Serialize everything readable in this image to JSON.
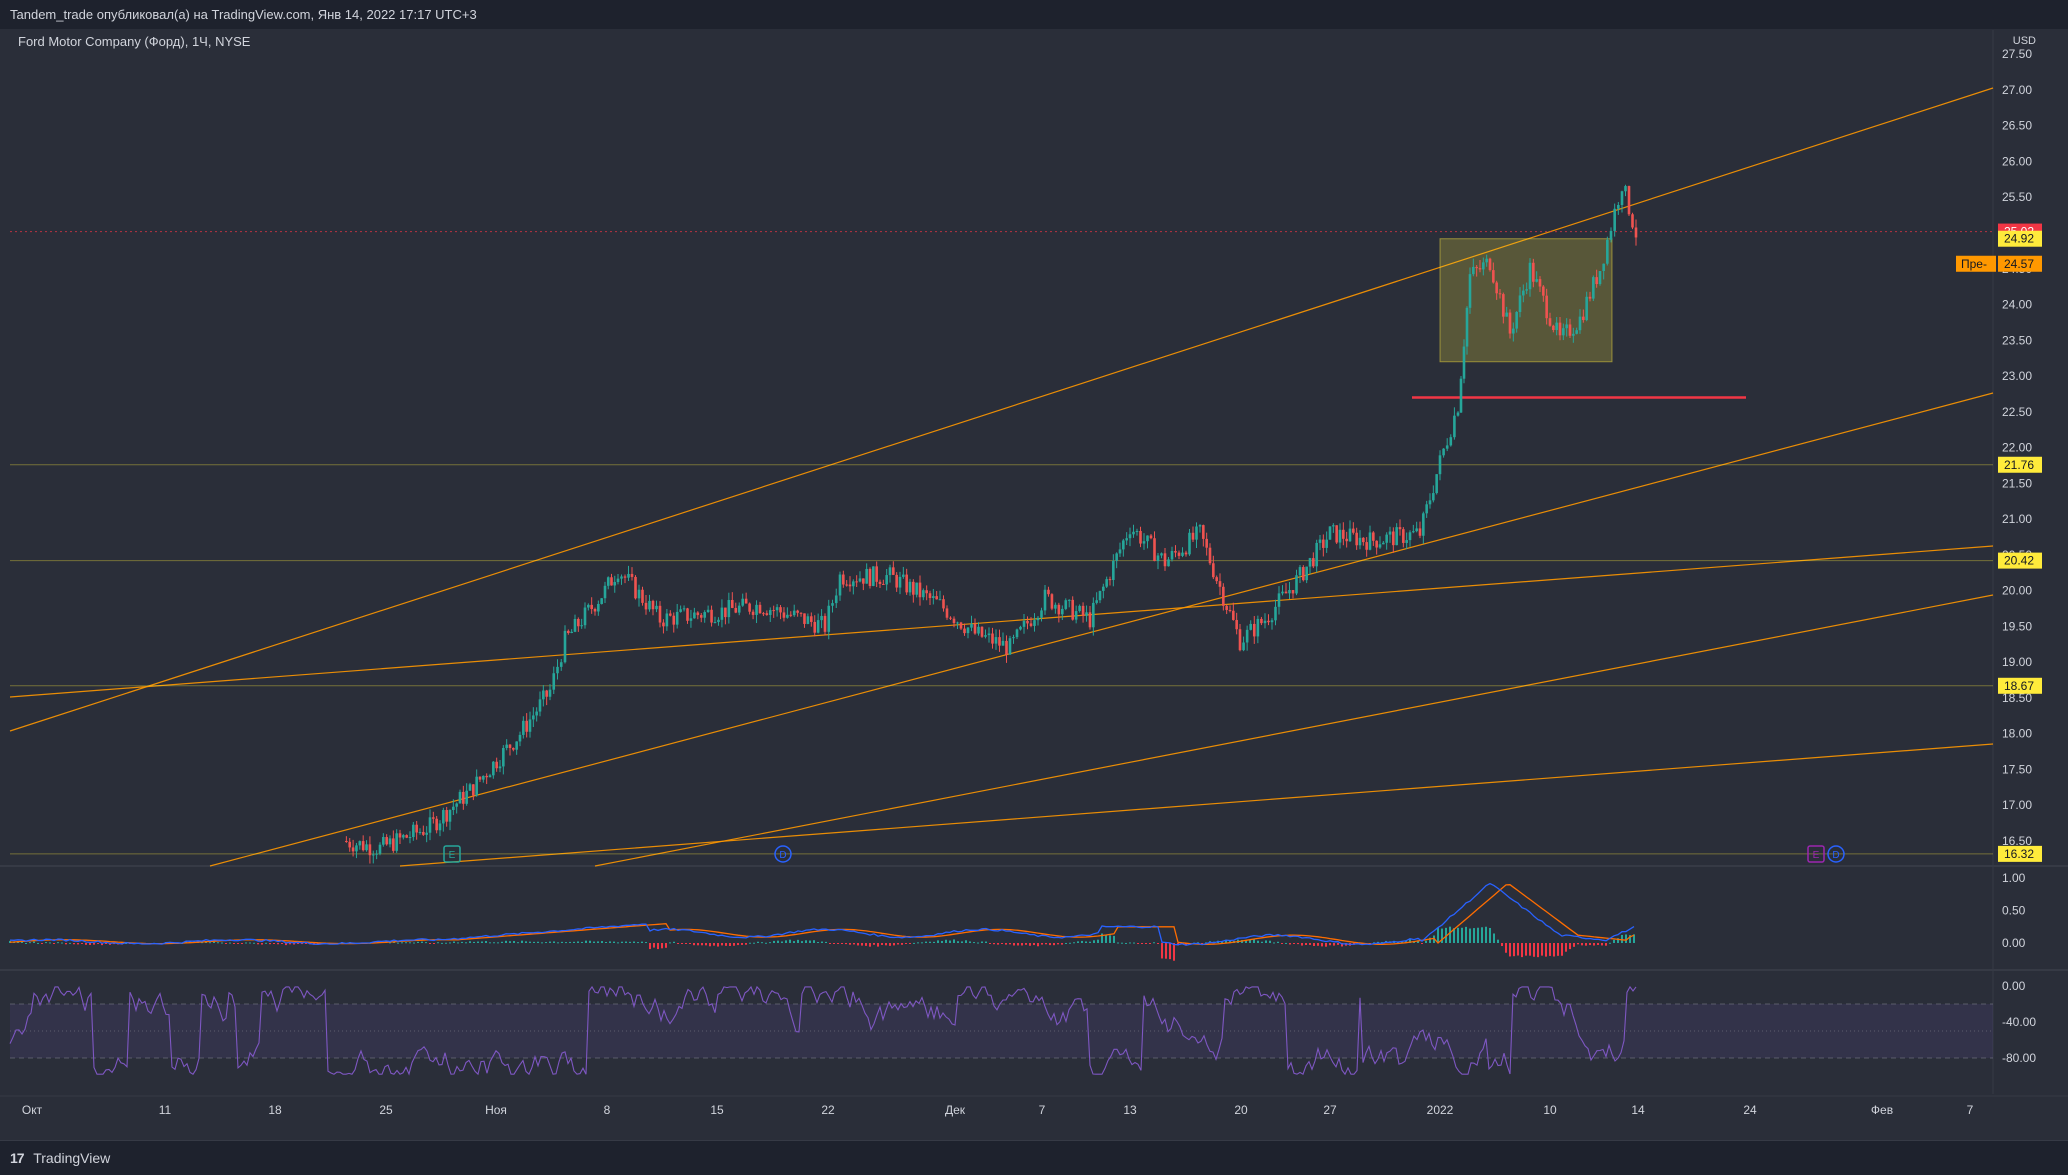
{
  "header": {
    "publisher_line": "Tandem_trade опубликовал(а) на TradingView.com, Янв 14, 2022 17:17 UTC+3"
  },
  "legend": {
    "symbol_line": "Ford Motor Company (Форд), 1Ч, NYSE"
  },
  "footer": {
    "brand": "TradingView",
    "logo_glyph": "17"
  },
  "chart_data": {
    "type": "candlestick",
    "currency": "USD",
    "price_axis_ticks": [
      "27.50",
      "27.00",
      "26.50",
      "26.00",
      "25.50",
      "25.00",
      "24.50",
      "24.00",
      "23.50",
      "23.00",
      "22.50",
      "22.00",
      "21.50",
      "21.00",
      "20.50",
      "20.00",
      "19.50",
      "19.00",
      "18.50",
      "18.00",
      "17.50",
      "17.00",
      "16.50"
    ],
    "price_labels": [
      {
        "value": "25.02",
        "color": "#f23645"
      },
      {
        "value": "24.92",
        "color": "#ffeb3b"
      },
      {
        "value": "24.57",
        "color": "#ff9800",
        "tag": "Пре-"
      },
      {
        "value": "21.76",
        "color": "#ffeb3b"
      },
      {
        "value": "20.42",
        "color": "#ffeb3b"
      },
      {
        "value": "18.67",
        "color": "#ffeb3b"
      },
      {
        "value": "16.32",
        "color": "#ffeb3b"
      }
    ],
    "time_axis_labels": [
      "Окт",
      "11",
      "18",
      "25",
      "Ноя",
      "8",
      "15",
      "22",
      "Дек",
      "7",
      "13",
      "20",
      "27",
      "2022",
      "10",
      "14",
      "24",
      "Фев",
      "7"
    ],
    "close_path": [
      [
        "Oct 19",
        16.5
      ],
      [
        "Oct 22",
        16.4
      ],
      [
        "Oct 27",
        16.7
      ],
      [
        "Oct 29",
        17.2
      ],
      [
        "Nov 2",
        18.0
      ],
      [
        "Nov 4",
        18.6
      ],
      [
        "Nov 5",
        19.3
      ],
      [
        "Nov 8",
        20.0
      ],
      [
        "Nov 9",
        20.3
      ],
      [
        "Nov 11",
        19.6
      ],
      [
        "Nov 15",
        19.7
      ],
      [
        "Nov 18",
        19.8
      ],
      [
        "Nov 22",
        19.5
      ],
      [
        "Nov 23",
        20.2
      ],
      [
        "Nov 26",
        20.2
      ],
      [
        "Nov 30",
        19.8
      ],
      [
        "Dec 3",
        19.4
      ],
      [
        "Dec 6",
        19.2
      ],
      [
        "Dec 8",
        19.9
      ],
      [
        "Dec 10",
        19.6
      ],
      [
        "Dec 13",
        20.9
      ],
      [
        "Dec 15",
        20.4
      ],
      [
        "Dec 17",
        20.8
      ],
      [
        "Dec 20",
        19.3
      ],
      [
        "Dec 22",
        19.6
      ],
      [
        "Dec 24",
        20.2
      ],
      [
        "Dec 27",
        20.8
      ],
      [
        "Dec 29",
        20.7
      ],
      [
        "Dec 31",
        20.8
      ],
      [
        "Jan 3",
        21.8
      ],
      [
        "Jan 4",
        22.6
      ],
      [
        "Jan 4b",
        24.4
      ],
      [
        "Jan 5",
        24.6
      ],
      [
        "Jan 6",
        23.6
      ],
      [
        "Jan 7",
        24.5
      ],
      [
        "Jan 10",
        23.5
      ],
      [
        "Jan 11",
        23.8
      ],
      [
        "Jan 12",
        24.5
      ],
      [
        "Jan 13",
        25.7
      ],
      [
        "Jan 14",
        25.0
      ]
    ],
    "consolidation_box": {
      "from": "Jan 4",
      "to": "Jan 13",
      "high": 24.92,
      "low": 23.2
    },
    "horizontal_levels": [
      {
        "price": 22.7,
        "color": "#f23645"
      },
      {
        "price": 21.76,
        "color": "#ffeb3b"
      },
      {
        "price": 20.42,
        "color": "#ffeb3b"
      },
      {
        "price": 18.67,
        "color": "#ffeb3b"
      },
      {
        "price": 16.32,
        "color": "#ffeb3b"
      }
    ],
    "event_markers": [
      {
        "date": "Oct 28",
        "label": "E",
        "color": "#26a69a"
      },
      {
        "date": "Nov 19",
        "label": "D",
        "color": "#2962ff"
      },
      {
        "date": "Feb 1",
        "label": "E",
        "color": "#9c27b0"
      },
      {
        "date": "Feb 2",
        "label": "D",
        "color": "#2962ff"
      }
    ],
    "macd_panel": {
      "ticks": [
        "1.00",
        "0.50",
        "0.00"
      ],
      "macd_color": "#2962ff",
      "signal_color": "#ff6d00",
      "hist_up_color": "#26a69a",
      "hist_down_color": "#f23645"
    },
    "rsi_panel": {
      "ticks": [
        "0.00",
        "-40.00",
        "-80.00"
      ],
      "line_color": "#7e57c2",
      "band_color": "#7e57c2"
    },
    "colors": {
      "up": "#26a69a",
      "down": "#ef5350",
      "trendline": "#ff9800",
      "background": "#2a2e39"
    }
  }
}
